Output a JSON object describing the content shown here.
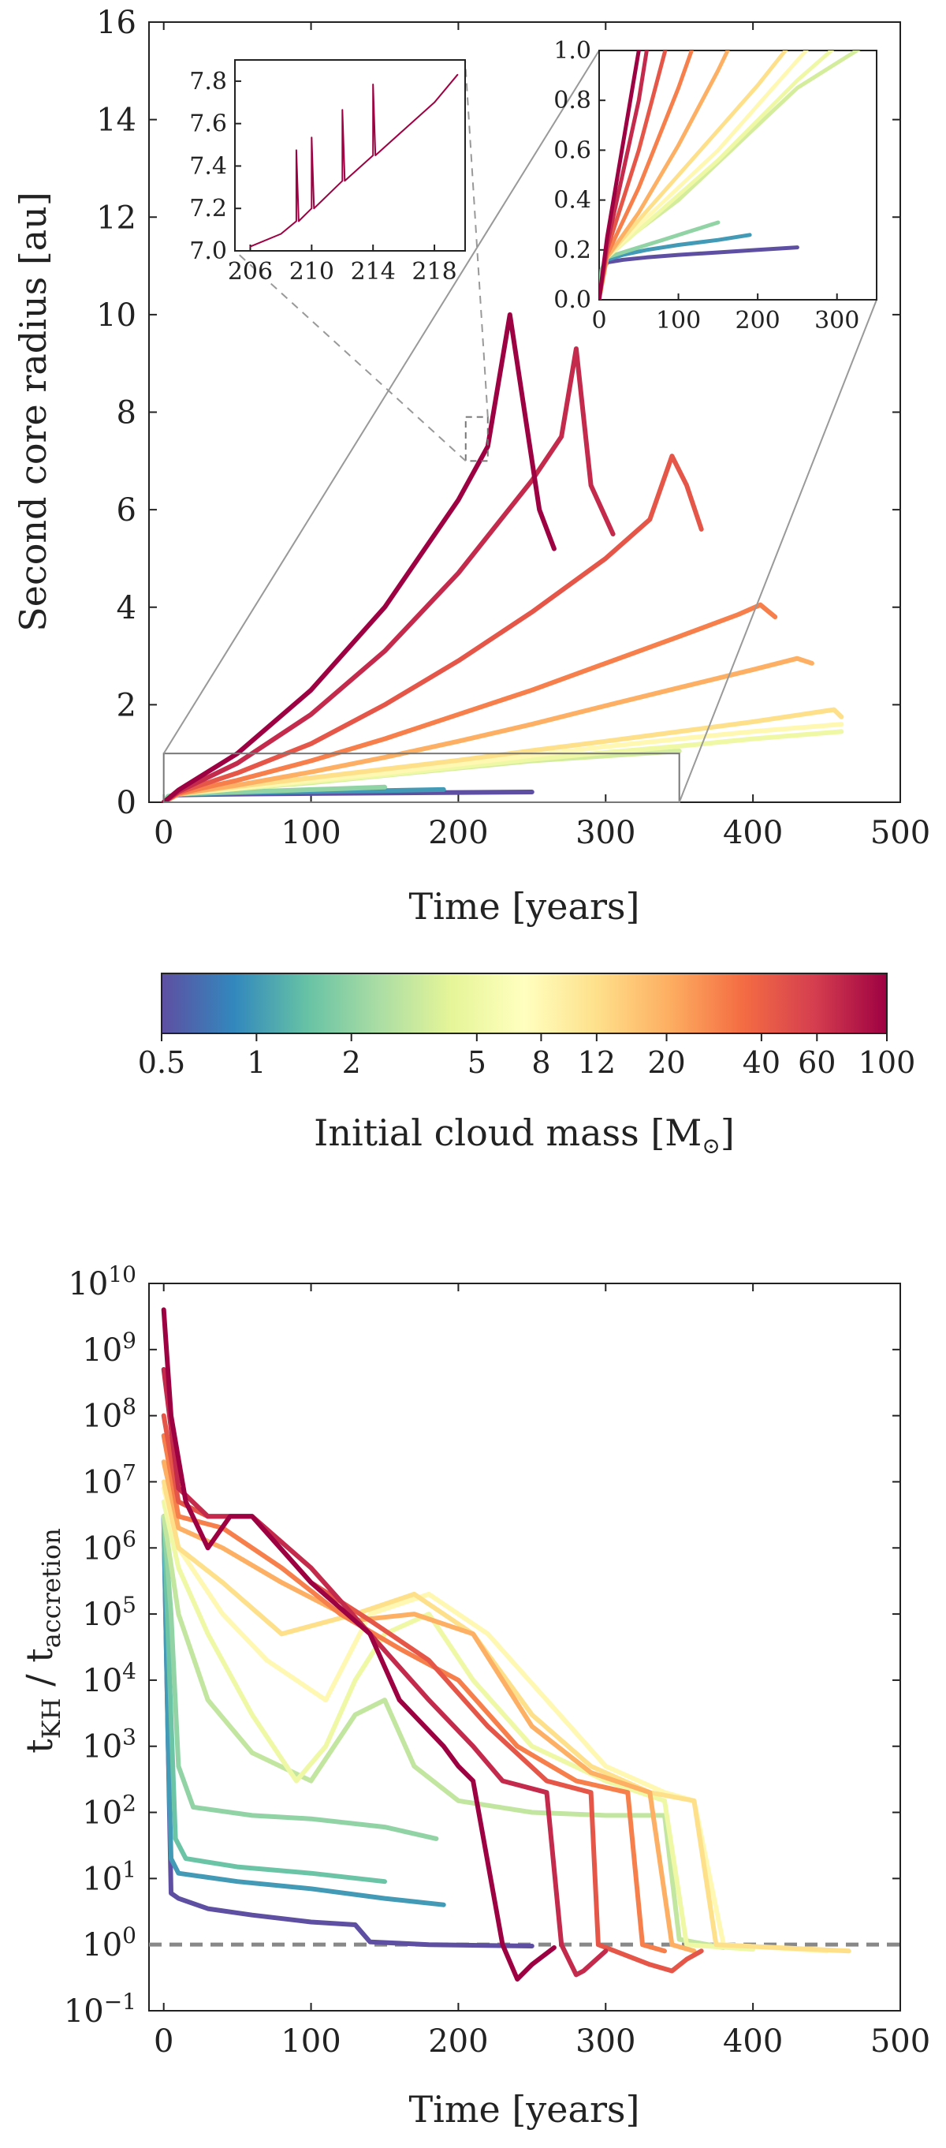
{
  "colorbar": {
    "label_prefix": "Initial cloud mass [M",
    "label_sub": "⊙",
    "label_suffix": "]",
    "ticks": [
      "0.5",
      "1",
      "2",
      "5",
      "8",
      "12",
      "20",
      "40",
      "60",
      "100"
    ],
    "colormap": "Spectral_r",
    "colors": [
      "#5e4fa2",
      "#3288bd",
      "#66c2a5",
      "#abdda4",
      "#e6f598",
      "#ffffbf",
      "#fee08b",
      "#fdae61",
      "#f46d43",
      "#d53e4f",
      "#9e0142"
    ]
  },
  "chart_data": [
    {
      "type": "line",
      "title": "",
      "xlabel": "Time [years]",
      "ylabel": "Second core radius [au]",
      "xlim": [
        -10,
        500
      ],
      "ylim": [
        0,
        16
      ],
      "xticks": [
        "0",
        "100",
        "200",
        "300",
        "400",
        "500"
      ],
      "yticks": [
        "0",
        "2",
        "4",
        "6",
        "8",
        "10",
        "12",
        "14",
        "16"
      ],
      "series": [
        {
          "name": "0.5",
          "x": [
            0,
            3,
            10,
            30,
            60,
            100,
            150,
            200,
            250
          ],
          "y": [
            0,
            0.1,
            0.15,
            0.16,
            0.17,
            0.18,
            0.19,
            0.2,
            0.21
          ]
        },
        {
          "name": "1",
          "x": [
            0,
            3,
            10,
            30,
            60,
            100,
            150,
            190
          ],
          "y": [
            0,
            0.12,
            0.16,
            0.18,
            0.2,
            0.22,
            0.24,
            0.26
          ]
        },
        {
          "name": "2",
          "x": [
            0,
            3,
            10,
            40,
            80,
            120,
            150
          ],
          "y": [
            0,
            0.12,
            0.17,
            0.2,
            0.24,
            0.28,
            0.31
          ]
        },
        {
          "name": "3.5",
          "x": [
            0,
            10,
            50,
            100,
            150,
            200,
            250,
            300,
            350
          ],
          "y": [
            0,
            0.18,
            0.28,
            0.4,
            0.55,
            0.7,
            0.85,
            0.95,
            1.05
          ]
        },
        {
          "name": "5",
          "x": [
            0,
            10,
            50,
            100,
            150,
            200,
            250,
            300,
            350,
            400,
            460
          ],
          "y": [
            0,
            0.17,
            0.28,
            0.42,
            0.56,
            0.72,
            0.88,
            1.02,
            1.15,
            1.3,
            1.45
          ]
        },
        {
          "name": "8",
          "x": [
            0,
            10,
            50,
            100,
            150,
            200,
            250,
            300,
            350,
            400,
            460
          ],
          "y": [
            0,
            0.17,
            0.3,
            0.45,
            0.6,
            0.78,
            0.96,
            1.14,
            1.3,
            1.45,
            1.6
          ]
        },
        {
          "name": "12",
          "x": [
            0,
            10,
            50,
            100,
            150,
            200,
            250,
            300,
            350,
            400,
            455,
            460
          ],
          "y": [
            0,
            0.17,
            0.32,
            0.5,
            0.68,
            0.86,
            1.06,
            1.25,
            1.45,
            1.65,
            1.9,
            1.75
          ]
        },
        {
          "name": "20",
          "x": [
            0,
            10,
            50,
            100,
            150,
            200,
            250,
            300,
            350,
            400,
            430,
            440
          ],
          "y": [
            0,
            0.17,
            0.35,
            0.62,
            0.92,
            1.25,
            1.6,
            1.98,
            2.35,
            2.72,
            2.95,
            2.85
          ]
        },
        {
          "name": "30",
          "x": [
            0,
            10,
            50,
            100,
            150,
            200,
            250,
            300,
            350,
            390,
            405,
            415
          ],
          "y": [
            0,
            0.18,
            0.45,
            0.85,
            1.3,
            1.8,
            2.3,
            2.85,
            3.4,
            3.85,
            4.05,
            3.8
          ]
        },
        {
          "name": "45",
          "x": [
            0,
            10,
            50,
            100,
            150,
            200,
            250,
            300,
            330,
            345,
            355,
            365
          ],
          "y": [
            0,
            0.2,
            0.6,
            1.2,
            2.0,
            2.9,
            3.9,
            5.0,
            5.8,
            7.1,
            6.5,
            5.6
          ]
        },
        {
          "name": "70",
          "x": [
            0,
            10,
            50,
            100,
            150,
            200,
            250,
            270,
            280,
            290,
            305
          ],
          "y": [
            0,
            0.22,
            0.8,
            1.8,
            3.1,
            4.7,
            6.6,
            7.5,
            9.3,
            6.5,
            5.5
          ]
        },
        {
          "name": "100",
          "x": [
            0,
            10,
            50,
            100,
            150,
            200,
            220,
            235,
            245,
            255,
            265
          ],
          "y": [
            0,
            0.25,
            1.0,
            2.3,
            4.0,
            6.2,
            7.3,
            10.0,
            8.0,
            6.0,
            5.2
          ]
        }
      ],
      "zoom_box": {
        "x": [
          0,
          350
        ],
        "y": [
          0,
          1
        ]
      },
      "insets": [
        {
          "name": "zoom-0-350",
          "xlim": [
            0,
            350
          ],
          "ylim": [
            0,
            1
          ],
          "xticks": [
            "0",
            "100",
            "200",
            "300"
          ],
          "yticks": [
            "0.0",
            "0.2",
            "0.4",
            "0.6",
            "0.8",
            "1.0"
          ]
        },
        {
          "name": "zoom-206-220",
          "xlim": [
            205,
            220
          ],
          "ylim": [
            7.0,
            7.9
          ],
          "xticks": [
            "206",
            "210",
            "214",
            "218"
          ],
          "yticks": [
            "7.0",
            "7.2",
            "7.4",
            "7.6",
            "7.8"
          ],
          "series": [
            {
              "name": "100",
              "x": [
                206,
                208,
                209,
                210,
                212,
                214,
                216,
                218,
                219.5
              ],
              "y": [
                7.02,
                7.08,
                7.14,
                7.2,
                7.33,
                7.45,
                7.57,
                7.7,
                7.83
              ]
            }
          ]
        }
      ]
    },
    {
      "type": "line",
      "title": "",
      "xlabel": "Time [years]",
      "ylabel_main": "t",
      "ylabel_sub1": "KH",
      "ylabel_mid": " / t",
      "ylabel_sub2": "accretion",
      "yscale": "log",
      "xlim": [
        -10,
        500
      ],
      "ylim": [
        0.1,
        10000000000.0
      ],
      "xticks": [
        "0",
        "100",
        "200",
        "300",
        "400",
        "500"
      ],
      "yticks_base": "10",
      "yticks_exp": [
        "−1",
        "0",
        "1",
        "2",
        "3",
        "4",
        "5",
        "6",
        "7",
        "8",
        "9",
        "10"
      ],
      "reference_line": {
        "y": 1.0,
        "style": "dashed"
      },
      "series": [
        {
          "name": "0.5",
          "x": [
            0,
            3,
            5,
            10,
            30,
            60,
            100,
            130,
            140,
            180,
            250
          ],
          "y": [
            3000000.0,
            1000.0,
            6,
            5,
            3.5,
            2.8,
            2.2,
            2.0,
            1.1,
            1.0,
            0.95
          ]
        },
        {
          "name": "1",
          "x": [
            0,
            3,
            5,
            10,
            50,
            100,
            150,
            190
          ],
          "y": [
            3000000.0,
            1000.0,
            20,
            12,
            9,
            7,
            5,
            4
          ]
        },
        {
          "name": "1.5",
          "x": [
            0,
            4,
            8,
            15,
            50,
            100,
            150
          ],
          "y": [
            3000000.0,
            10000.0,
            40,
            20,
            15,
            12,
            9
          ]
        },
        {
          "name": "2",
          "x": [
            0,
            5,
            10,
            20,
            60,
            100,
            150,
            185
          ],
          "y": [
            3000000.0,
            100000.0,
            500,
            120,
            90,
            80,
            60,
            40
          ]
        },
        {
          "name": "3",
          "x": [
            0,
            10,
            30,
            60,
            100,
            130,
            150,
            170,
            200,
            250,
            300,
            340,
            350,
            380
          ],
          "y": [
            3000000.0,
            100000.0,
            5000.0,
            800,
            300,
            3000.0,
            5000.0,
            500,
            150,
            100,
            90,
            90,
            1.2,
            0.9
          ]
        },
        {
          "name": "5",
          "x": [
            0,
            10,
            30,
            60,
            90,
            110,
            130,
            150,
            180,
            210,
            250,
            300,
            340,
            355,
            400
          ],
          "y": [
            5000000.0,
            500000.0,
            50000.0,
            3000.0,
            300,
            1000.0,
            10000.0,
            50000.0,
            100000.0,
            10000.0,
            1000.0,
            300,
            150,
            1.0,
            0.85
          ]
        },
        {
          "name": "8",
          "x": [
            0,
            10,
            40,
            70,
            110,
            140,
            180,
            220,
            260,
            300,
            340,
            360,
            380,
            450
          ],
          "y": [
            8000000.0,
            1000000.0,
            100000.0,
            20000.0,
            5000.0,
            100000.0,
            200000.0,
            50000.0,
            5000.0,
            500,
            200,
            150,
            1.0,
            0.8
          ]
        },
        {
          "name": "12",
          "x": [
            0,
            10,
            40,
            80,
            130,
            170,
            210,
            250,
            290,
            330,
            360,
            375,
            465
          ],
          "y": [
            10000000.0,
            1000000.0,
            300000.0,
            50000.0,
            100000.0,
            200000.0,
            50000.0,
            3000.0,
            500,
            200,
            150,
            1.0,
            0.8
          ]
        },
        {
          "name": "20",
          "x": [
            0,
            10,
            40,
            80,
            130,
            170,
            210,
            250,
            290,
            330,
            345,
            360
          ],
          "y": [
            20000000.0,
            2000000.0,
            1000000.0,
            300000.0,
            80000.0,
            100000.0,
            50000.0,
            2000.0,
            400,
            200,
            1.0,
            0.8
          ]
        },
        {
          "name": "30",
          "x": [
            0,
            10,
            40,
            80,
            120,
            160,
            200,
            240,
            280,
            315,
            325,
            340
          ],
          "y": [
            50000000.0,
            3000000.0,
            2000000.0,
            500000.0,
            100000.0,
            30000.0,
            10000.0,
            1000.0,
            300,
            200,
            1.0,
            0.8
          ]
        },
        {
          "name": "45",
          "x": [
            0,
            10,
            30,
            60,
            100,
            140,
            180,
            220,
            260,
            290,
            295,
            330,
            345,
            355,
            365
          ],
          "y": [
            100000000.0,
            5000000.0,
            3000000.0,
            3000000.0,
            300000.0,
            80000.0,
            20000.0,
            2000.0,
            300,
            200,
            1.0,
            0.5,
            0.4,
            0.6,
            0.8
          ]
        },
        {
          "name": "70",
          "x": [
            0,
            10,
            30,
            60,
            100,
            140,
            180,
            210,
            230,
            260,
            270,
            280,
            285,
            300
          ],
          "y": [
            500000000.0,
            8000000.0,
            3000000.0,
            3000000.0,
            500000.0,
            50000.0,
            5000.0,
            1000.0,
            300,
            200,
            1.0,
            0.35,
            0.4,
            0.8
          ]
        },
        {
          "name": "100",
          "x": [
            0,
            5,
            15,
            30,
            45,
            60,
            100,
            140,
            160,
            190,
            200,
            210,
            230,
            240,
            250,
            265
          ],
          "y": [
            4000000000.0,
            100000000.0,
            5000000.0,
            1000000.0,
            3000000.0,
            3000000.0,
            300000.0,
            50000.0,
            5000.0,
            1000.0,
            500,
            300,
            1.0,
            0.3,
            0.5,
            0.9
          ]
        }
      ]
    }
  ]
}
